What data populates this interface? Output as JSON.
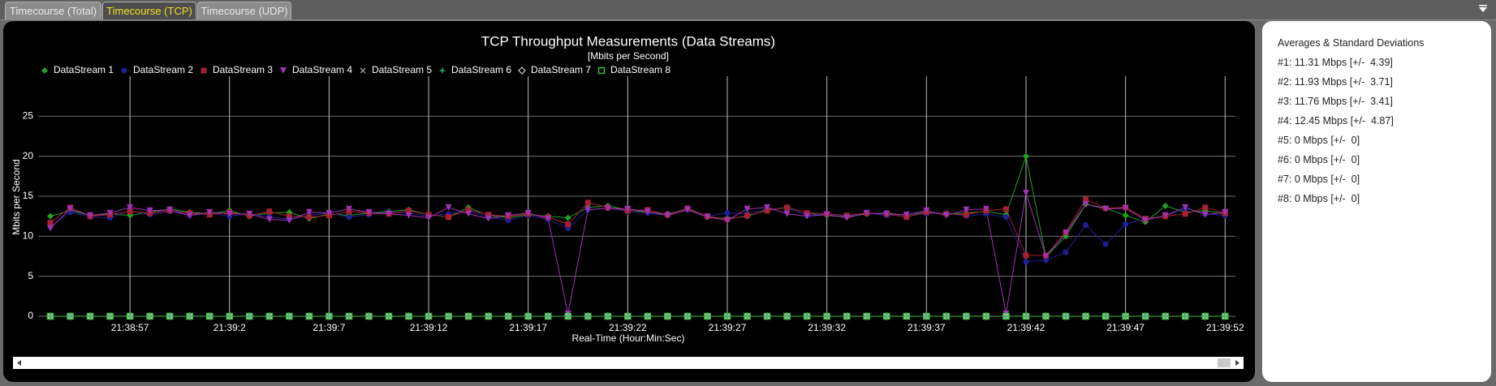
{
  "tabs": [
    {
      "label": "Timecourse (Total)",
      "active": false
    },
    {
      "label": "Timecourse (TCP)",
      "active": true
    },
    {
      "label": "Timecourse (UDP)",
      "active": false
    }
  ],
  "chart_data": {
    "type": "line",
    "title": "TCP Throughput Measurements (Data Streams)",
    "subtitle": "[Mbits per Second]",
    "x_label": "Real-Time (Hour:Min:Sec)",
    "y_label": "Mbits per Second",
    "categories": [
      null,
      null,
      null,
      null,
      "21:38:57",
      null,
      null,
      null,
      null,
      "21:39:2",
      null,
      null,
      null,
      null,
      "21:39:7",
      null,
      null,
      null,
      null,
      "21:39:12",
      null,
      null,
      null,
      null,
      "21:39:17",
      null,
      null,
      null,
      null,
      "21:39:22",
      null,
      null,
      null,
      null,
      "21:39:27",
      null,
      null,
      null,
      null,
      "21:39:32",
      null,
      null,
      null,
      null,
      "21:39:37",
      null,
      null,
      null,
      null,
      "21:39:42",
      null,
      null,
      null,
      null,
      "21:39:47",
      null,
      null,
      null,
      null,
      "21:39:52"
    ],
    "ylim": [
      0,
      30
    ],
    "yticks": [
      0,
      5,
      10,
      15,
      20,
      25
    ],
    "grid": true,
    "series": [
      {
        "name": "DataStream 1",
        "color": "#22a022",
        "marker": "diamond",
        "values": [
          12.5,
          13.2,
          12.6,
          12.8,
          12.6,
          13.0,
          13.4,
          13.0,
          12.8,
          13.2,
          12.5,
          12.9,
          13.0,
          12.2,
          12.8,
          12.6,
          12.9,
          13.1,
          13.3,
          12.7,
          12.4,
          13.6,
          12.6,
          12.3,
          12.7,
          12.5,
          12.3,
          13.6,
          13.8,
          13.3,
          13.0,
          12.8,
          13.4,
          12.4,
          12.2,
          12.5,
          13.3,
          13.6,
          12.9,
          12.6,
          12.4,
          12.8,
          12.9,
          12.6,
          13.0,
          12.8,
          12.9,
          13.1,
          12.7,
          20.0,
          7.4,
          10.0,
          14.0,
          13.5,
          12.6,
          11.8,
          13.8,
          13.0,
          13.2,
          12.8
        ]
      },
      {
        "name": "DataStream 2",
        "color": "#1e1e96",
        "marker": "circle",
        "values": [
          11.2,
          13.0,
          12.4,
          12.3,
          13.2,
          12.7,
          13.1,
          12.6,
          12.9,
          12.5,
          12.8,
          12.4,
          12.1,
          12.6,
          12.9,
          12.4,
          12.7,
          13.0,
          12.9,
          12.5,
          12.8,
          13.2,
          12.4,
          12.0,
          12.6,
          12.1,
          11.0,
          13.3,
          13.5,
          13.1,
          12.9,
          12.6,
          13.3,
          12.5,
          12.9,
          12.8,
          13.4,
          13.5,
          12.6,
          12.8,
          12.5,
          12.9,
          12.6,
          12.7,
          12.8,
          12.9,
          12.5,
          12.8,
          12.4,
          6.8,
          7.0,
          8.0,
          11.4,
          9.0,
          11.5,
          12.2,
          12.5,
          13.5,
          12.8,
          12.6
        ]
      },
      {
        "name": "DataStream 3",
        "color": "#a81e32",
        "marker": "square",
        "values": [
          11.7,
          13.6,
          12.5,
          12.7,
          13.1,
          12.9,
          13.2,
          12.9,
          12.7,
          13.0,
          12.6,
          13.1,
          12.5,
          12.4,
          12.6,
          13.1,
          12.9,
          12.8,
          13.2,
          12.7,
          12.4,
          13.3,
          12.7,
          12.5,
          12.8,
          12.4,
          11.5,
          14.2,
          13.6,
          13.2,
          13.3,
          12.7,
          13.5,
          12.5,
          12.1,
          12.6,
          13.2,
          13.6,
          12.9,
          12.8,
          12.6,
          12.9,
          12.8,
          12.4,
          13.0,
          12.8,
          12.7,
          13.2,
          13.4,
          7.6,
          7.6,
          10.5,
          14.6,
          13.5,
          13.6,
          12.2,
          12.5,
          12.8,
          13.6,
          12.9
        ]
      },
      {
        "name": "DataStream 4",
        "color": "#a032b4",
        "marker": "triangle-down",
        "values": [
          11.0,
          13.4,
          12.6,
          12.9,
          13.6,
          13.2,
          13.3,
          12.6,
          13.0,
          12.8,
          12.8,
          12.1,
          12.0,
          13.0,
          12.9,
          13.4,
          13.0,
          12.8,
          12.6,
          12.3,
          13.6,
          12.8,
          12.2,
          12.6,
          12.9,
          12.2,
          0.3,
          13.3,
          13.5,
          13.4,
          13.1,
          12.6,
          13.3,
          12.4,
          12.0,
          13.4,
          13.6,
          12.8,
          12.5,
          12.7,
          12.3,
          12.9,
          12.8,
          12.7,
          13.2,
          12.6,
          13.3,
          13.4,
          0.3,
          15.4,
          7.5,
          10.4,
          14.0,
          13.4,
          13.5,
          12.0,
          12.6,
          13.6,
          12.7,
          13.0
        ]
      },
      {
        "name": "DataStream 5",
        "color": "#b4b4b4",
        "marker": "x",
        "values": [
          0,
          0,
          0,
          0,
          0,
          0,
          0,
          0,
          0,
          0,
          0,
          0,
          0,
          0,
          0,
          0,
          0,
          0,
          0,
          0,
          0,
          0,
          0,
          0,
          0,
          0,
          0,
          0,
          0,
          0,
          0,
          0,
          0,
          0,
          0,
          0,
          0,
          0,
          0,
          0,
          0,
          0,
          0,
          0,
          0,
          0,
          0,
          0,
          0,
          0,
          0,
          0,
          0,
          0,
          0,
          0,
          0,
          0,
          0,
          0
        ]
      },
      {
        "name": "DataStream 6",
        "color": "#3cc878",
        "marker": "plus",
        "values": [
          0,
          0,
          0,
          0,
          0,
          0,
          0,
          0,
          0,
          0,
          0,
          0,
          0,
          0,
          0,
          0,
          0,
          0,
          0,
          0,
          0,
          0,
          0,
          0,
          0,
          0,
          0,
          0,
          0,
          0,
          0,
          0,
          0,
          0,
          0,
          0,
          0,
          0,
          0,
          0,
          0,
          0,
          0,
          0,
          0,
          0,
          0,
          0,
          0,
          0,
          0,
          0,
          0,
          0,
          0,
          0,
          0,
          0,
          0,
          0
        ]
      },
      {
        "name": "DataStream 7",
        "color": "#e6e6e6",
        "marker": "diamond-open",
        "values": [
          0,
          0,
          0,
          0,
          0,
          0,
          0,
          0,
          0,
          0,
          0,
          0,
          0,
          0,
          0,
          0,
          0,
          0,
          0,
          0,
          0,
          0,
          0,
          0,
          0,
          0,
          0,
          0,
          0,
          0,
          0,
          0,
          0,
          0,
          0,
          0,
          0,
          0,
          0,
          0,
          0,
          0,
          0,
          0,
          0,
          0,
          0,
          0,
          0,
          0,
          0,
          0,
          0,
          0,
          0,
          0,
          0,
          0,
          0,
          0
        ]
      },
      {
        "name": "DataStream 8",
        "color": "#3cbe3c",
        "marker": "square-open",
        "values": [
          0,
          0,
          0,
          0,
          0,
          0,
          0,
          0,
          0,
          0,
          0,
          0,
          0,
          0,
          0,
          0,
          0,
          0,
          0,
          0,
          0,
          0,
          0,
          0,
          0,
          0,
          0,
          0,
          0,
          0,
          0,
          0,
          0,
          0,
          0,
          0,
          0,
          0,
          0,
          0,
          0,
          0,
          0,
          0,
          0,
          0,
          0,
          0,
          0,
          0,
          0,
          0,
          0,
          0,
          0,
          0,
          0,
          0,
          0,
          0
        ]
      }
    ]
  },
  "stats_panel": {
    "title": "Averages & Standard Deviations",
    "lines": [
      "#1: 11.31 Mbps [+/-  4.39]",
      "#2: 11.93 Mbps [+/-  3.71]",
      "#3: 11.76 Mbps [+/-  3.41]",
      "#4: 12.45 Mbps [+/-  4.87]",
      "#5: 0 Mbps [+/-  0]",
      "#6: 0 Mbps [+/-  0]",
      "#7: 0 Mbps [+/-  0]",
      "#8: 0 Mbps [+/-  0]"
    ]
  }
}
